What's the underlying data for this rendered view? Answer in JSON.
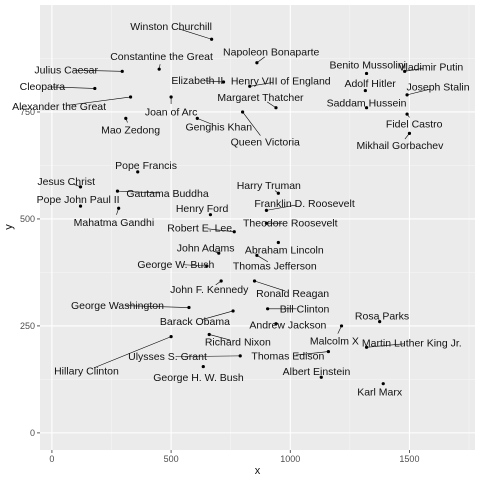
{
  "chart_data": {
    "type": "scatter",
    "title": "",
    "xlabel": "x",
    "ylabel": "y",
    "xlim": [
      -50,
      1775
    ],
    "ylim": [
      -40,
      1000
    ],
    "x_ticks": [
      0,
      500,
      1000,
      1500
    ],
    "y_ticks": [
      0,
      250,
      500,
      750
    ],
    "grid": true,
    "legend": "none",
    "colors": {
      "panel": "#ebebeb",
      "grid_major": "#ffffff",
      "grid_minor": "#f5f5f5",
      "point": "#000000",
      "text": "#111111",
      "tick": "#4d4d4d"
    },
    "points": [
      {
        "name": "Winston Churchill",
        "x": 670,
        "y": 920,
        "lx": 500,
        "ly": 950
      },
      {
        "name": "Napoleon Bonaparte",
        "x": 860,
        "y": 865,
        "lx": 920,
        "ly": 890
      },
      {
        "name": "Constantine the Great",
        "x": 450,
        "y": 850,
        "lx": 460,
        "ly": 880
      },
      {
        "name": "Julius Caesar",
        "x": 295,
        "y": 845,
        "lx": 60,
        "ly": 848
      },
      {
        "name": "Benito Mussolini",
        "x": 1320,
        "y": 840,
        "lx": 1325,
        "ly": 860
      },
      {
        "name": "Vladimir Putin",
        "x": 1480,
        "y": 845,
        "lx": 1590,
        "ly": 855
      },
      {
        "name": "Elizabeth II",
        "x": 720,
        "y": 820,
        "lx": 610,
        "ly": 824
      },
      {
        "name": "Henry VIII of England",
        "x": 830,
        "y": 810,
        "lx": 960,
        "ly": 822
      },
      {
        "name": "Adolf Hitler",
        "x": 1315,
        "y": 800,
        "lx": 1335,
        "ly": 816
      },
      {
        "name": "Cleopatra",
        "x": 180,
        "y": 805,
        "lx": -40,
        "ly": 809
      },
      {
        "name": "Joseph Stalin",
        "x": 1490,
        "y": 790,
        "lx": 1620,
        "ly": 808
      },
      {
        "name": "Margaret Thatcher",
        "x": 940,
        "y": 760,
        "lx": 875,
        "ly": 784
      },
      {
        "name": "Alexander the Great",
        "x": 330,
        "y": 785,
        "lx": 30,
        "ly": 763
      },
      {
        "name": "Joan of Arc",
        "x": 500,
        "y": 785,
        "lx": 500,
        "ly": 750
      },
      {
        "name": "Saddam Hussein",
        "x": 1320,
        "y": 760,
        "lx": 1320,
        "ly": 771
      },
      {
        "name": "Mao Zedong",
        "x": 310,
        "y": 735,
        "lx": 330,
        "ly": 708
      },
      {
        "name": "Genghis Khan",
        "x": 610,
        "y": 735,
        "lx": 700,
        "ly": 715
      },
      {
        "name": "Fidel Castro",
        "x": 1490,
        "y": 745,
        "lx": 1520,
        "ly": 722
      },
      {
        "name": "Queen Victoria",
        "x": 800,
        "y": 750,
        "lx": 895,
        "ly": 680
      },
      {
        "name": "Mikhail Gorbachev",
        "x": 1500,
        "y": 700,
        "lx": 1460,
        "ly": 672
      },
      {
        "name": "Pope Francis",
        "x": 360,
        "y": 610,
        "lx": 395,
        "ly": 625
      },
      {
        "name": "Jesus Christ",
        "x": 120,
        "y": 575,
        "lx": 60,
        "ly": 588
      },
      {
        "name": "Harry Truman",
        "x": 950,
        "y": 560,
        "lx": 910,
        "ly": 578
      },
      {
        "name": "Gautama Buddha",
        "x": 275,
        "y": 565,
        "lx": 485,
        "ly": 560
      },
      {
        "name": "Pope John Paul II",
        "x": 120,
        "y": 530,
        "lx": 110,
        "ly": 545
      },
      {
        "name": "Franklin D. Roosevelt",
        "x": 900,
        "y": 520,
        "lx": 1060,
        "ly": 536
      },
      {
        "name": "Henry Ford",
        "x": 665,
        "y": 510,
        "lx": 630,
        "ly": 524
      },
      {
        "name": "Mahatma Gandhi",
        "x": 280,
        "y": 525,
        "lx": 260,
        "ly": 492
      },
      {
        "name": "Theodore Roosevelt",
        "x": 900,
        "y": 490,
        "lx": 1000,
        "ly": 490
      },
      {
        "name": "Robert E. Lee",
        "x": 765,
        "y": 470,
        "lx": 620,
        "ly": 479
      },
      {
        "name": "John Adams",
        "x": 700,
        "y": 420,
        "lx": 645,
        "ly": 432
      },
      {
        "name": "Abraham Lincoln",
        "x": 950,
        "y": 445,
        "lx": 975,
        "ly": 428
      },
      {
        "name": "George W. Bush",
        "x": 650,
        "y": 390,
        "lx": 520,
        "ly": 394
      },
      {
        "name": "Thomas Jefferson",
        "x": 860,
        "y": 415,
        "lx": 935,
        "ly": 390
      },
      {
        "name": "John F. Kennedy",
        "x": 710,
        "y": 355,
        "lx": 660,
        "ly": 335
      },
      {
        "name": "Ronald Reagan",
        "x": 850,
        "y": 355,
        "lx": 1010,
        "ly": 326
      },
      {
        "name": "George Washington",
        "x": 575,
        "y": 293,
        "lx": 275,
        "ly": 298
      },
      {
        "name": "Bill Clinton",
        "x": 905,
        "y": 290,
        "lx": 1060,
        "ly": 290
      },
      {
        "name": "Barack Obama",
        "x": 760,
        "y": 285,
        "lx": 600,
        "ly": 260
      },
      {
        "name": "Rosa Parks",
        "x": 1375,
        "y": 260,
        "lx": 1385,
        "ly": 273
      },
      {
        "name": "Andrew Jackson",
        "x": 940,
        "y": 255,
        "lx": 990,
        "ly": 252
      },
      {
        "name": "Malcolm X",
        "x": 1215,
        "y": 250,
        "lx": 1185,
        "ly": 215
      },
      {
        "name": "Richard Nixon",
        "x": 660,
        "y": 230,
        "lx": 780,
        "ly": 212
      },
      {
        "name": "Martin Luther King Jr.",
        "x": 1320,
        "y": 200,
        "lx": 1510,
        "ly": 210
      },
      {
        "name": "Hillary Clinton",
        "x": 500,
        "y": 225,
        "lx": 145,
        "ly": 145
      },
      {
        "name": "Thomas Edison",
        "x": 1160,
        "y": 190,
        "lx": 990,
        "ly": 180
      },
      {
        "name": "Ulysses S. Grant",
        "x": 790,
        "y": 180,
        "lx": 485,
        "ly": 178
      },
      {
        "name": "George H. W. Bush",
        "x": 635,
        "y": 155,
        "lx": 615,
        "ly": 130
      },
      {
        "name": "Albert Einstein",
        "x": 1130,
        "y": 130,
        "lx": 1110,
        "ly": 144
      },
      {
        "name": "Karl Marx",
        "x": 1390,
        "y": 115,
        "lx": 1375,
        "ly": 96
      }
    ]
  }
}
